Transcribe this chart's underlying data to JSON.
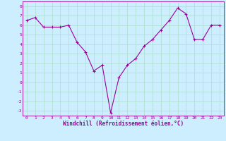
{
  "x": [
    0,
    1,
    2,
    3,
    4,
    5,
    6,
    7,
    8,
    9,
    10,
    11,
    12,
    13,
    14,
    15,
    16,
    17,
    18,
    19,
    20,
    21,
    22,
    23
  ],
  "y": [
    6.5,
    6.8,
    5.8,
    5.8,
    5.8,
    6.0,
    4.2,
    3.2,
    1.2,
    1.8,
    -3.2,
    0.5,
    1.8,
    2.5,
    3.8,
    4.5,
    5.5,
    6.5,
    7.8,
    7.2,
    4.5,
    4.5,
    6.0,
    6.0
  ],
  "line_color": "#990099",
  "marker": "+",
  "marker_size": 3,
  "bg_color": "#cceeff",
  "grid_color": "#aaddcc",
  "xlabel": "Windchill (Refroidissement éolien,°C)",
  "xlabel_color": "#990099",
  "tick_color": "#990099",
  "ylim": [
    -3.5,
    8.5
  ],
  "xlim": [
    -0.5,
    23.5
  ],
  "yticks": [
    -3,
    -2,
    -1,
    0,
    1,
    2,
    3,
    4,
    5,
    6,
    7,
    8
  ],
  "xticks": [
    0,
    1,
    2,
    3,
    4,
    5,
    6,
    7,
    8,
    9,
    10,
    11,
    12,
    13,
    14,
    15,
    16,
    17,
    18,
    19,
    20,
    21,
    22,
    23
  ],
  "figsize": [
    3.2,
    2.0
  ],
  "dpi": 100
}
